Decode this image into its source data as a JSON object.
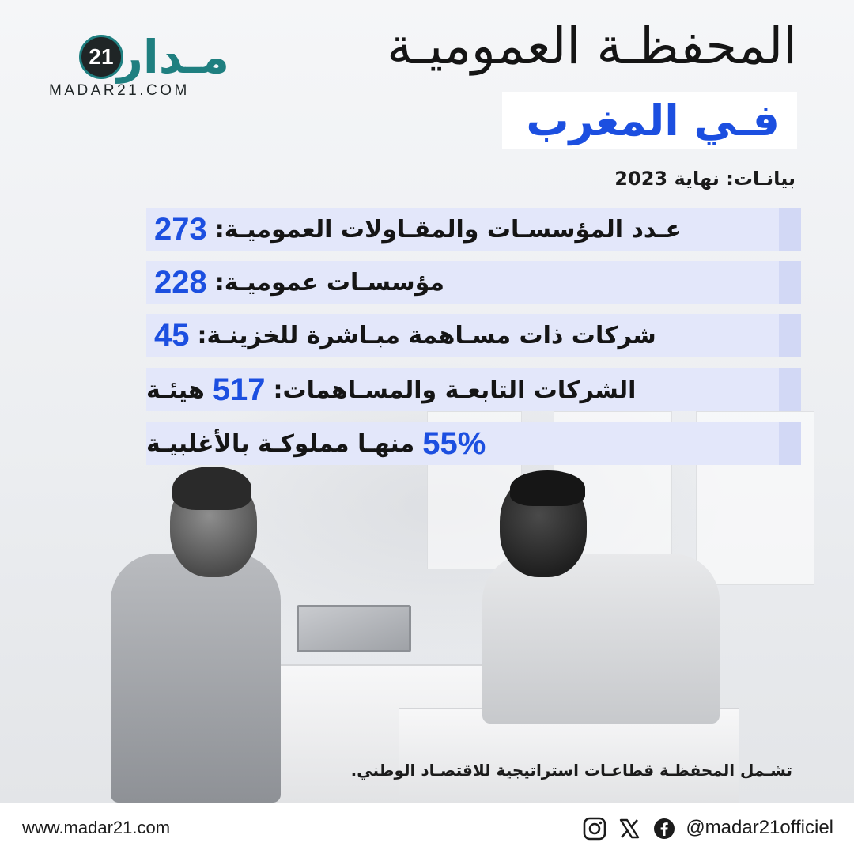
{
  "logo": {
    "wordmark": "مـدار",
    "badge": "21",
    "domain": "MADAR21.COM"
  },
  "title": {
    "line1": "المحفظـة العموميـة",
    "line2": "فـي المغرب"
  },
  "data_note": "بيانـات: نهاية 2023",
  "stats": [
    {
      "label": "عـدد المؤسسـات والمقـاولات العموميـة:",
      "value": "273",
      "suffix": ""
    },
    {
      "label": "مؤسسـات عموميـة:",
      "value": "228",
      "suffix": ""
    },
    {
      "label": "شركات ذات مسـاهمة مبـاشرة للخزينـة:",
      "value": "45",
      "suffix": ""
    },
    {
      "label": "الشركات التابعـة والمسـاهمات:",
      "value": "517",
      "suffix": "هيئـة"
    },
    {
      "label": "",
      "value": "55%",
      "suffix": "منهـا مملوكـة بالأغلبيـة"
    }
  ],
  "footnote": "تشـمل المحفظـة قطاعـات استراتيجية للاقتصـاد الوطني.",
  "footer": {
    "website": "www.madar21.com",
    "handle": "@madar21officiel",
    "icons": [
      "instagram-icon",
      "x-icon",
      "facebook-icon"
    ]
  },
  "colors": {
    "accent_blue": "#1c4fe0",
    "row_bg": "#e3e7fa",
    "brand_teal": "#1f7f80"
  }
}
